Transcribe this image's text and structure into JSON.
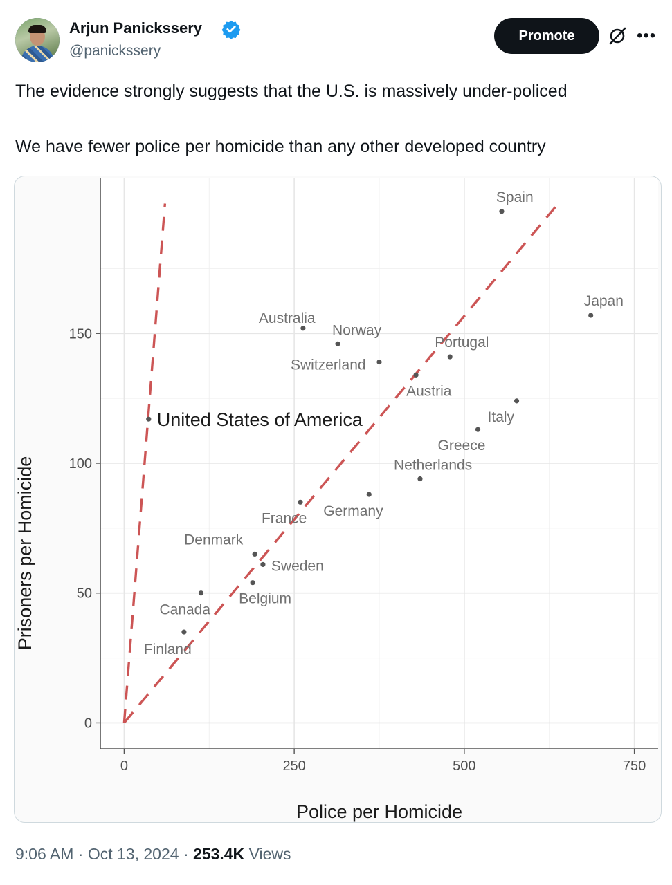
{
  "author": {
    "name": "Arjun Panickssery",
    "handle": "@panickssery",
    "verified_color": "#1d9bf0"
  },
  "actions": {
    "promote_label": "Promote",
    "grok_icon": "grok-icon",
    "more_icon": "more-icon"
  },
  "tweet": {
    "line1": "The evidence strongly suggests that the U.S. is massively under-policed",
    "line2": "We have fewer police per homicide than any other developed country"
  },
  "meta": {
    "time": "9:06 AM",
    "date": "Oct 13, 2024",
    "views_count": "253.4K",
    "views_label": "Views",
    "sep": "·"
  },
  "chart_data": {
    "type": "scatter",
    "xlabel": "Police per Homicide",
    "ylabel": "Prisoners per Homicide",
    "xlim": [
      -35,
      785
    ],
    "ylim": [
      -10,
      210
    ],
    "xticks": [
      0,
      250,
      500,
      750
    ],
    "yticks": [
      0,
      50,
      100,
      150
    ],
    "grid": true,
    "points": [
      {
        "label": "Spain",
        "x": 555,
        "y": 197
      },
      {
        "label": "Japan",
        "x": 686,
        "y": 157
      },
      {
        "label": "Australia",
        "x": 263,
        "y": 152
      },
      {
        "label": "Norway",
        "x": 314,
        "y": 146
      },
      {
        "label": "Switzerland",
        "x": 375,
        "y": 139
      },
      {
        "label": "Portugal",
        "x": 479,
        "y": 141
      },
      {
        "label": "Austria",
        "x": 429,
        "y": 134
      },
      {
        "label": "United States of America",
        "x": 36,
        "y": 117
      },
      {
        "label": "Italy",
        "x": 577,
        "y": 124
      },
      {
        "label": "Greece",
        "x": 520,
        "y": 113
      },
      {
        "label": "Netherlands",
        "x": 435,
        "y": 94
      },
      {
        "label": "Germany",
        "x": 360,
        "y": 88
      },
      {
        "label": "France",
        "x": 259,
        "y": 85
      },
      {
        "label": "Denmark",
        "x": 192,
        "y": 65
      },
      {
        "label": "Sweden",
        "x": 204,
        "y": 61
      },
      {
        "label": "Belgium",
        "x": 189,
        "y": 54
      },
      {
        "label": "Canada",
        "x": 113,
        "y": 50
      },
      {
        "label": "Finland",
        "x": 88,
        "y": 35
      }
    ],
    "reference_lines": [
      {
        "from": [
          0,
          0
        ],
        "to": [
          60,
          200
        ],
        "color": "#cc5555",
        "style": "dashed"
      },
      {
        "from": [
          0,
          0
        ],
        "to": [
          638,
          200
        ],
        "color": "#cc5555",
        "style": "dashed"
      }
    ]
  }
}
